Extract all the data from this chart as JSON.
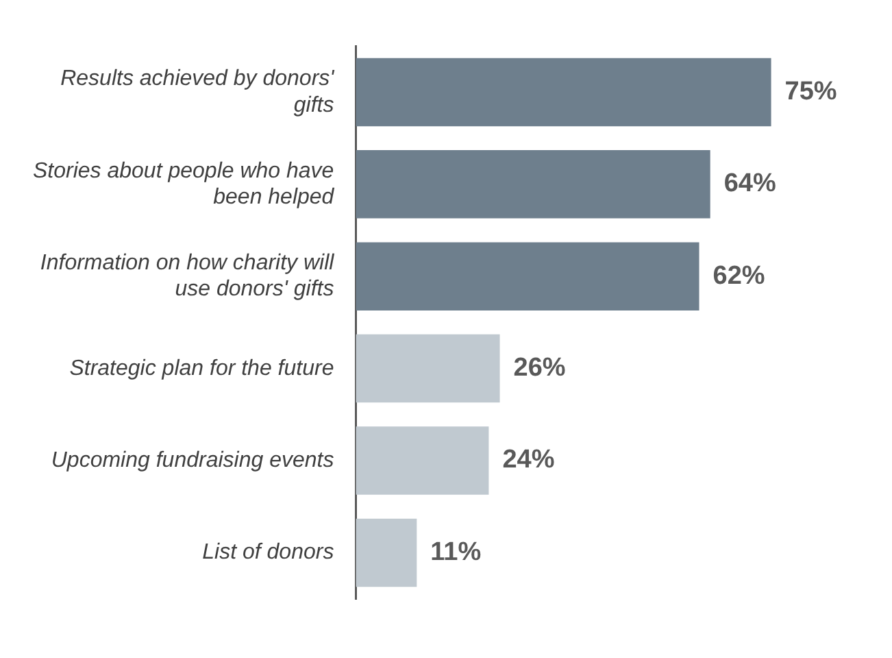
{
  "chart_data": {
    "type": "bar",
    "orientation": "horizontal",
    "categories": [
      "Results achieved by donors' gifts",
      "Stories about people who have been helped",
      "Information on how charity will use donors' gifts",
      "Strategic plan for the future",
      "Upcoming fundraising events",
      "List of donors"
    ],
    "values": [
      75,
      64,
      62,
      26,
      24,
      11
    ],
    "colors": [
      "#6e7f8d",
      "#6e7f8d",
      "#6e7f8d",
      "#c0c9d0",
      "#c0c9d0",
      "#c0c9d0"
    ],
    "value_labels": [
      "75%",
      "64%",
      "62%",
      "26%",
      "24%",
      "11%"
    ],
    "grid": false,
    "legend": false
  }
}
